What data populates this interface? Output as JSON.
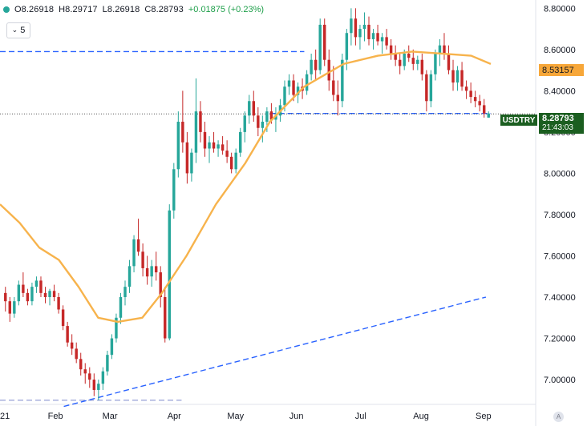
{
  "header": {
    "open": "O8.26918",
    "high": "H8.29717",
    "low": "L8.26918",
    "close": "C8.28793",
    "change": "+0.01875 (+0.23%)",
    "indicator_count": "5"
  },
  "price_tag": {
    "value": "8.28793",
    "countdown": "21:43:03"
  },
  "symbol_label": "USDTRY",
  "ma_tag": "8.53157",
  "colors": {
    "up": "#26a69a",
    "down": "#c62828",
    "ma": "#f7b34c",
    "blue_dash": "#2962ff",
    "price_tag": "#1b5e20"
  },
  "chart_data": {
    "type": "candlestick",
    "y_range": [
      6.88,
      8.84
    ],
    "y_ticks": [
      "8.80000",
      "8.60000",
      "8.40000",
      "8.20000",
      "8.00000",
      "7.80000",
      "7.60000",
      "7.40000",
      "7.20000",
      "7.00000"
    ],
    "x_ticks": [
      "21",
      "Feb",
      "Mar",
      "Apr",
      "May",
      "Jun",
      "Jul",
      "Aug",
      "Sep"
    ],
    "candles": [
      [
        7.42,
        7.45,
        7.33,
        7.38
      ],
      [
        7.38,
        7.4,
        7.28,
        7.32
      ],
      [
        7.32,
        7.4,
        7.3,
        7.38
      ],
      [
        7.38,
        7.48,
        7.36,
        7.46
      ],
      [
        7.46,
        7.52,
        7.4,
        7.42
      ],
      [
        7.42,
        7.44,
        7.36,
        7.38
      ],
      [
        7.38,
        7.47,
        7.36,
        7.45
      ],
      [
        7.45,
        7.5,
        7.42,
        7.48
      ],
      [
        7.48,
        7.5,
        7.4,
        7.42
      ],
      [
        7.42,
        7.45,
        7.37,
        7.4
      ],
      [
        7.4,
        7.44,
        7.36,
        7.43
      ],
      [
        7.43,
        7.46,
        7.38,
        7.4
      ],
      [
        7.4,
        7.42,
        7.32,
        7.34
      ],
      [
        7.34,
        7.36,
        7.24,
        7.26
      ],
      [
        7.26,
        7.28,
        7.16,
        7.18
      ],
      [
        7.18,
        7.22,
        7.12,
        7.15
      ],
      [
        7.15,
        7.18,
        7.08,
        7.1
      ],
      [
        7.1,
        7.13,
        7.02,
        7.05
      ],
      [
        7.05,
        7.08,
        6.98,
        7.03
      ],
      [
        7.03,
        7.06,
        6.96,
        7.0
      ],
      [
        7.0,
        7.03,
        6.92,
        6.95
      ],
      [
        6.95,
        7.0,
        6.9,
        6.98
      ],
      [
        6.98,
        7.06,
        6.95,
        7.04
      ],
      [
        7.04,
        7.14,
        7.02,
        7.12
      ],
      [
        7.12,
        7.22,
        7.1,
        7.2
      ],
      [
        7.2,
        7.32,
        7.18,
        7.3
      ],
      [
        7.3,
        7.42,
        7.27,
        7.4
      ],
      [
        7.4,
        7.48,
        7.36,
        7.45
      ],
      [
        7.45,
        7.58,
        7.42,
        7.55
      ],
      [
        7.55,
        7.7,
        7.52,
        7.68
      ],
      [
        7.68,
        7.78,
        7.6,
        7.62
      ],
      [
        7.62,
        7.66,
        7.5,
        7.54
      ],
      [
        7.54,
        7.6,
        7.46,
        7.5
      ],
      [
        7.5,
        7.58,
        7.45,
        7.55
      ],
      [
        7.55,
        7.62,
        7.48,
        7.52
      ],
      [
        7.52,
        7.55,
        7.35,
        7.4
      ],
      [
        7.4,
        7.45,
        7.18,
        7.2
      ],
      [
        7.2,
        7.85,
        7.19,
        7.82
      ],
      [
        7.82,
        8.05,
        7.78,
        8.02
      ],
      [
        8.02,
        8.3,
        7.98,
        8.25
      ],
      [
        8.25,
        8.4,
        8.1,
        8.15
      ],
      [
        8.15,
        8.2,
        7.95,
        8.0
      ],
      [
        8.0,
        8.12,
        7.96,
        8.1
      ],
      [
        8.1,
        8.46,
        8.05,
        8.3
      ],
      [
        8.3,
        8.35,
        8.15,
        8.2
      ],
      [
        8.2,
        8.25,
        8.08,
        8.12
      ],
      [
        8.12,
        8.18,
        8.05,
        8.15
      ],
      [
        8.15,
        8.2,
        8.1,
        8.12
      ],
      [
        8.12,
        8.16,
        8.08,
        8.14
      ],
      [
        8.14,
        8.18,
        8.09,
        8.11
      ],
      [
        8.11,
        8.16,
        8.05,
        8.08
      ],
      [
        8.08,
        8.1,
        8.0,
        8.02
      ],
      [
        8.02,
        8.12,
        8.0,
        8.1
      ],
      [
        8.1,
        8.22,
        8.08,
        8.2
      ],
      [
        8.2,
        8.3,
        8.15,
        8.28
      ],
      [
        8.28,
        8.38,
        8.24,
        8.35
      ],
      [
        8.35,
        8.4,
        8.25,
        8.28
      ],
      [
        8.28,
        8.32,
        8.18,
        8.22
      ],
      [
        8.22,
        8.28,
        8.15,
        8.25
      ],
      [
        8.25,
        8.32,
        8.2,
        8.3
      ],
      [
        8.3,
        8.34,
        8.24,
        8.26
      ],
      [
        8.26,
        8.32,
        8.2,
        8.28
      ],
      [
        8.28,
        8.36,
        8.25,
        8.33
      ],
      [
        8.33,
        8.45,
        8.3,
        8.42
      ],
      [
        8.42,
        8.48,
        8.38,
        8.45
      ],
      [
        8.45,
        8.48,
        8.35,
        8.38
      ],
      [
        8.38,
        8.44,
        8.34,
        8.42
      ],
      [
        8.42,
        8.46,
        8.36,
        8.4
      ],
      [
        8.4,
        8.5,
        8.38,
        8.48
      ],
      [
        8.48,
        8.58,
        8.45,
        8.55
      ],
      [
        8.55,
        8.6,
        8.45,
        8.5
      ],
      [
        8.5,
        8.75,
        8.48,
        8.72
      ],
      [
        8.72,
        8.75,
        8.52,
        8.55
      ],
      [
        8.55,
        8.6,
        8.4,
        8.45
      ],
      [
        8.45,
        8.52,
        8.35,
        8.38
      ],
      [
        8.38,
        8.45,
        8.28,
        8.35
      ],
      [
        8.35,
        8.58,
        8.32,
        8.55
      ],
      [
        8.55,
        8.7,
        8.5,
        8.68
      ],
      [
        8.68,
        8.8,
        8.62,
        8.75
      ],
      [
        8.75,
        8.8,
        8.62,
        8.66
      ],
      [
        8.66,
        8.72,
        8.6,
        8.7
      ],
      [
        8.7,
        8.78,
        8.64,
        8.72
      ],
      [
        8.72,
        8.76,
        8.62,
        8.65
      ],
      [
        8.65,
        8.7,
        8.6,
        8.68
      ],
      [
        8.68,
        8.72,
        8.62,
        8.64
      ],
      [
        8.64,
        8.68,
        8.58,
        8.66
      ],
      [
        8.66,
        8.7,
        8.6,
        8.62
      ],
      [
        8.62,
        8.65,
        8.55,
        8.58
      ],
      [
        8.58,
        8.62,
        8.52,
        8.55
      ],
      [
        8.55,
        8.58,
        8.48,
        8.52
      ],
      [
        8.52,
        8.6,
        8.5,
        8.58
      ],
      [
        8.58,
        8.62,
        8.54,
        8.56
      ],
      [
        8.56,
        8.6,
        8.5,
        8.53
      ],
      [
        8.53,
        8.57,
        8.5,
        8.55
      ],
      [
        8.55,
        8.58,
        8.45,
        8.48
      ],
      [
        8.48,
        8.5,
        8.3,
        8.35
      ],
      [
        8.35,
        8.5,
        8.32,
        8.48
      ],
      [
        8.48,
        8.6,
        8.45,
        8.58
      ],
      [
        8.58,
        8.65,
        8.52,
        8.62
      ],
      [
        8.62,
        8.68,
        8.55,
        8.58
      ],
      [
        8.58,
        8.62,
        8.48,
        8.5
      ],
      [
        8.5,
        8.55,
        8.4,
        8.44
      ],
      [
        8.44,
        8.52,
        8.4,
        8.5
      ],
      [
        8.5,
        8.54,
        8.4,
        8.42
      ],
      [
        8.42,
        8.45,
        8.36,
        8.4
      ],
      [
        8.4,
        8.44,
        8.34,
        8.37
      ],
      [
        8.37,
        8.4,
        8.32,
        8.35
      ],
      [
        8.35,
        8.38,
        8.3,
        8.33
      ],
      [
        8.33,
        8.36,
        8.27,
        8.29
      ],
      [
        8.27,
        8.3,
        8.27,
        8.29
      ]
    ],
    "ma_series": [
      [
        0,
        7.85
      ],
      [
        0.04,
        7.76
      ],
      [
        0.08,
        7.64
      ],
      [
        0.12,
        7.58
      ],
      [
        0.16,
        7.45
      ],
      [
        0.2,
        7.3
      ],
      [
        0.24,
        7.28
      ],
      [
        0.29,
        7.3
      ],
      [
        0.33,
        7.42
      ],
      [
        0.38,
        7.6
      ],
      [
        0.44,
        7.85
      ],
      [
        0.5,
        8.05
      ],
      [
        0.55,
        8.25
      ],
      [
        0.62,
        8.42
      ],
      [
        0.7,
        8.53
      ],
      [
        0.77,
        8.57
      ],
      [
        0.84,
        8.59
      ],
      [
        0.9,
        8.58
      ],
      [
        0.96,
        8.57
      ],
      [
        1.0,
        8.53
      ]
    ],
    "h_levels": [
      {
        "y": 8.59,
        "x": [
          0,
          0.62
        ],
        "color": "#2962ff"
      },
      {
        "y": 8.29,
        "x": [
          0.55,
          1.0
        ],
        "color": "#2962ff"
      },
      {
        "y": 6.9,
        "x": [
          0,
          0.37
        ],
        "color": "#9fa8da"
      }
    ],
    "trendlines": [
      {
        "from": [
          0.13,
          6.87
        ],
        "to": [
          0.99,
          7.4
        ],
        "color": "#2962ff"
      }
    ],
    "last_price_line": 8.28793
  }
}
